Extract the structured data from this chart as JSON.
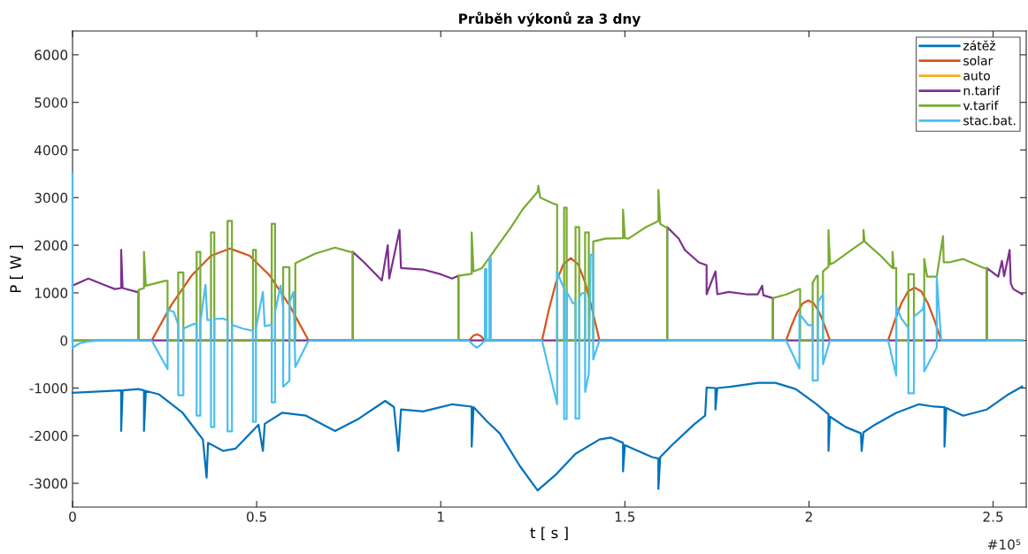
{
  "chart_data": {
    "type": "line",
    "title": "Průběh výkonů za 3 dny",
    "xlabel": "t [ s ]",
    "ylabel": "P [ W ]",
    "xlim": [
      0,
      2.59
    ],
    "ylim": [
      -3500,
      6500
    ],
    "xticks": [
      0,
      0.5,
      1,
      1.5,
      2,
      2.5
    ],
    "yticks": [
      -3000,
      -2000,
      -1000,
      0,
      1000,
      2000,
      3000,
      4000,
      5000,
      6000
    ],
    "annotations": [
      "#10⁵"
    ],
    "grid": false,
    "legend": "top right",
    "series": [
      {
        "name": "zátěž",
        "color": "#0072bd",
        "x": [
          0,
          0.132,
          0.132,
          0.136,
          0.179,
          0.194,
          0.194,
          0.199,
          0.234,
          0.299,
          0.354,
          0.364,
          0.368,
          0.409,
          0.443,
          0.505,
          0.517,
          0.522,
          0.569,
          0.634,
          0.713,
          0.778,
          0.849,
          0.873,
          0.885,
          0.892,
          0.952,
          1.031,
          1.084,
          1.084,
          1.089,
          1.127,
          1.16,
          1.215,
          1.263,
          1.311,
          1.366,
          1.431,
          1.462,
          1.495,
          1.495,
          1.5,
          1.574,
          1.591,
          1.591,
          1.596,
          1.629,
          1.687,
          1.718,
          1.722,
          1.746,
          1.746,
          1.751,
          1.789,
          1.861,
          1.909,
          1.964,
          2.021,
          2.053,
          2.053,
          2.057,
          2.1,
          2.141,
          2.143,
          2.148,
          2.179,
          2.237,
          2.299,
          2.34,
          2.368,
          2.368,
          2.373,
          2.419,
          2.483,
          2.538,
          2.579
        ],
        "values": [
          -1100,
          -1050,
          -1900,
          -1050,
          -1020,
          -1050,
          -1900,
          -1060,
          -1130,
          -1520,
          -2080,
          -2880,
          -2150,
          -2320,
          -2270,
          -1770,
          -2320,
          -1750,
          -1520,
          -1580,
          -1900,
          -1640,
          -1270,
          -1400,
          -2320,
          -1450,
          -1490,
          -1340,
          -1390,
          -2230,
          -1400,
          -1710,
          -1950,
          -2640,
          -3150,
          -2830,
          -2380,
          -2080,
          -2040,
          -2150,
          -2750,
          -2200,
          -2450,
          -2480,
          -3120,
          -2450,
          -2190,
          -1770,
          -1580,
          -990,
          -1000,
          -1450,
          -1000,
          -970,
          -890,
          -890,
          -1020,
          -1340,
          -1550,
          -2320,
          -1600,
          -1820,
          -1950,
          -2320,
          -1930,
          -1770,
          -1520,
          -1340,
          -1390,
          -1400,
          -2230,
          -1420,
          -1580,
          -1450,
          -1150,
          -970
        ]
      },
      {
        "name": "solar",
        "color": "#d95319",
        "x": [
          0,
          0.215,
          0.268,
          0.323,
          0.376,
          0.428,
          0.481,
          0.536,
          0.589,
          0.641,
          1.077,
          1.087,
          1.098,
          1.109,
          1.12,
          1.275,
          1.294,
          1.313,
          1.333,
          1.353,
          1.373,
          1.392,
          1.411,
          1.431,
          1.938,
          1.953,
          1.968,
          1.983,
          1.998,
          2.013,
          2.028,
          2.042,
          2.057,
          2.215,
          2.233,
          2.251,
          2.269,
          2.287,
          2.305,
          2.323,
          2.341,
          2.359,
          2.579
        ],
        "values": [
          0,
          0,
          740,
          1360,
          1780,
          1930,
          1780,
          1360,
          740,
          0,
          0,
          90,
          130,
          90,
          0,
          0,
          660,
          1220,
          1600,
          1730,
          1600,
          1220,
          660,
          0,
          0,
          320,
          590,
          780,
          840,
          780,
          590,
          320,
          0,
          0,
          420,
          780,
          1030,
          1110,
          1030,
          780,
          420,
          0,
          0
        ]
      },
      {
        "name": "auto",
        "color": "#edb120"
      },
      {
        "name": "n.tarif",
        "color": "#7e2f8e",
        "x": [
          0,
          0.043,
          0.091,
          0.115,
          0.132,
          0.132,
          0.136,
          0.175,
          0.179,
          0.179,
          0.761,
          0.761,
          0.792,
          0.84,
          0.856,
          0.86,
          0.888,
          0.892,
          0.952,
          1.0,
          1.031,
          1.048,
          1.048,
          1.615,
          1.615,
          1.646,
          1.663,
          1.701,
          1.722,
          1.722,
          1.746,
          1.751,
          1.782,
          1.83,
          1.861,
          1.873,
          1.876,
          1.902,
          1.902,
          2.483,
          2.483,
          2.514,
          2.524,
          2.53,
          2.545,
          2.548,
          2.555,
          2.579
        ],
        "values": [
          1150,
          1300,
          1150,
          1080,
          1100,
          1900,
          1100,
          1020,
          1020,
          0,
          0,
          1860,
          1640,
          1260,
          2000,
          1300,
          2320,
          1520,
          1490,
          1390,
          1300,
          1360,
          0,
          0,
          2380,
          2140,
          1900,
          1640,
          1580,
          970,
          1450,
          970,
          1020,
          970,
          970,
          1150,
          950,
          890,
          0,
          0,
          1520,
          1340,
          1670,
          1350,
          1900,
          1200,
          1080,
          970
        ]
      },
      {
        "name": "v.tarif",
        "color": "#77ac30",
        "x": [
          0,
          0.179,
          0.179,
          0.194,
          0.194,
          0.199,
          0.251,
          0.258,
          0.258,
          0.287,
          0.287,
          0.301,
          0.301,
          0.337,
          0.337,
          0.347,
          0.347,
          0.376,
          0.376,
          0.385,
          0.385,
          0.421,
          0.421,
          0.433,
          0.433,
          0.49,
          0.49,
          0.498,
          0.498,
          0.541,
          0.541,
          0.55,
          0.55,
          0.572,
          0.572,
          0.589,
          0.589,
          0.605,
          0.605,
          0.658,
          0.713,
          0.754,
          0.761,
          0.761,
          1.048,
          1.048,
          1.084,
          1.084,
          1.089,
          1.112,
          1.151,
          1.191,
          1.222,
          1.263,
          1.265,
          1.27,
          1.304,
          1.316,
          1.316,
          1.335,
          1.335,
          1.342,
          1.342,
          1.366,
          1.366,
          1.376,
          1.376,
          1.392,
          1.392,
          1.402,
          1.402,
          1.414,
          1.414,
          1.447,
          1.495,
          1.495,
          1.5,
          1.51,
          1.557,
          1.591,
          1.591,
          1.596,
          1.61,
          1.615,
          1.615,
          1.902,
          1.902,
          1.94,
          1.974,
          1.976,
          1.976,
          2.01,
          2.01,
          2.021,
          2.024,
          2.024,
          2.038,
          2.038,
          2.053,
          2.053,
          2.057,
          2.069,
          2.124,
          2.148,
          2.148,
          2.151,
          2.196,
          2.227,
          2.227,
          2.23,
          2.237,
          2.237,
          2.27,
          2.27,
          2.285,
          2.285,
          2.313,
          2.313,
          2.321,
          2.347,
          2.364,
          2.366,
          2.38,
          2.419,
          2.476,
          2.483,
          2.483,
          2.579
        ],
        "values": [
          0,
          0,
          1060,
          1100,
          1860,
          1150,
          1250,
          1250,
          0,
          0,
          1430,
          1430,
          0,
          0,
          1860,
          1860,
          0,
          0,
          2270,
          2270,
          0,
          0,
          2510,
          2510,
          0,
          0,
          1900,
          1900,
          0,
          0,
          2450,
          2450,
          0,
          0,
          1540,
          1540,
          0,
          0,
          1620,
          1820,
          1950,
          1860,
          1860,
          0,
          0,
          1360,
          1400,
          2270,
          1450,
          1520,
          1950,
          2380,
          2750,
          3120,
          3250,
          3000,
          2880,
          2850,
          0,
          0,
          2790,
          2790,
          0,
          0,
          2380,
          2380,
          0,
          0,
          2270,
          2270,
          0,
          0,
          2080,
          2140,
          2150,
          2750,
          2150,
          2140,
          2380,
          2510,
          3160,
          2450,
          2380,
          2380,
          0,
          0,
          890,
          970,
          1080,
          1080,
          0,
          0,
          1210,
          1360,
          1360,
          0,
          0,
          1450,
          1550,
          2320,
          1600,
          1640,
          1950,
          2080,
          2320,
          2080,
          1770,
          1520,
          1860,
          1520,
          1520,
          0,
          0,
          1390,
          1390,
          0,
          0,
          1710,
          1340,
          1340,
          2190,
          1640,
          1640,
          1710,
          1520,
          1520,
          0,
          0
        ]
      },
      {
        "name": "stac.bat.",
        "color": "#4dbeee",
        "x": [
          0,
          0,
          0.019,
          0.043,
          0.079,
          0.215,
          0.258,
          0.258,
          0.275,
          0.287,
          0.287,
          0.301,
          0.301,
          0.33,
          0.337,
          0.337,
          0.347,
          0.347,
          0.361,
          0.366,
          0.376,
          0.376,
          0.385,
          0.385,
          0.409,
          0.421,
          0.421,
          0.433,
          0.433,
          0.462,
          0.49,
          0.49,
          0.498,
          0.498,
          0.517,
          0.522,
          0.541,
          0.541,
          0.55,
          0.55,
          0.565,
          0.572,
          0.572,
          0.589,
          0.589,
          0.6,
          0.605,
          0.641,
          1.077,
          1.087,
          1.098,
          1.109,
          1.12,
          1.12,
          1.124,
          1.124,
          1.132,
          1.132,
          1.136,
          1.136,
          1.275,
          1.316,
          1.316,
          1.328,
          1.335,
          1.335,
          1.342,
          1.342,
          1.359,
          1.366,
          1.366,
          1.376,
          1.376,
          1.383,
          1.392,
          1.392,
          1.402,
          1.407,
          1.414,
          1.414,
          1.431,
          1.938,
          1.974,
          1.974,
          1.998,
          2.01,
          2.01,
          2.024,
          2.024,
          2.038,
          2.038,
          2.057,
          2.215,
          2.237,
          2.237,
          2.251,
          2.268,
          2.27,
          2.27,
          2.285,
          2.285,
          2.309,
          2.313,
          2.313,
          2.347,
          2.347,
          2.359,
          2.579
        ],
        "values": [
          3500,
          -150,
          -60,
          -20,
          0,
          0,
          -600,
          650,
          600,
          330,
          -1150,
          -1150,
          250,
          350,
          330,
          -1580,
          -1580,
          380,
          1170,
          430,
          430,
          -1820,
          -1820,
          450,
          460,
          420,
          -1910,
          -1910,
          330,
          250,
          200,
          -1710,
          -1710,
          250,
          1020,
          300,
          330,
          -1300,
          -1300,
          600,
          1150,
          700,
          -970,
          -850,
          800,
          1020,
          -560,
          0,
          0,
          -90,
          -150,
          -90,
          0,
          1500,
          1500,
          0,
          0,
          1730,
          1730,
          0,
          0,
          -1340,
          1450,
          1210,
          1100,
          -1650,
          -1650,
          1020,
          780,
          800,
          -1640,
          -1640,
          900,
          990,
          1000,
          -1080,
          -700,
          1800,
          1800,
          -400,
          0,
          0,
          -590,
          560,
          320,
          320,
          -840,
          -840,
          800,
          970,
          -500,
          0,
          0,
          -740,
          710,
          460,
          280,
          280,
          -1110,
          -1110,
          500,
          650,
          800,
          -650,
          -150,
          1340,
          0,
          0
        ]
      }
    ]
  }
}
